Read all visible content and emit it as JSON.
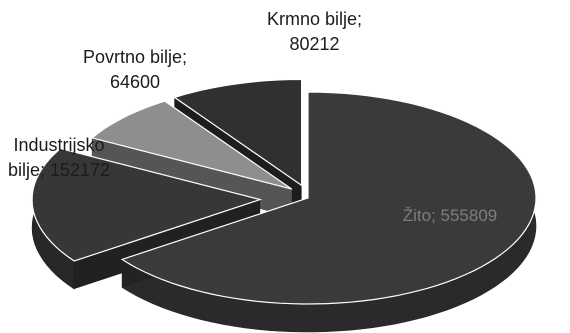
{
  "chart_data": {
    "type": "pie",
    "title": "",
    "slices": [
      {
        "name": "Žito",
        "value": 555809,
        "color": "#3a3a3a"
      },
      {
        "name": "Industrijsko bilje",
        "value": 152172,
        "color": "#373737"
      },
      {
        "name": "Povrtno bilje",
        "value": 64600,
        "color": "#8e8e8e"
      },
      {
        "name": "Krmno bilje",
        "value": 80212,
        "color": "#303030"
      }
    ],
    "data_labels": [
      [
        "Žito; 555809"
      ],
      [
        "Industrijsko",
        "bilje; 152172"
      ],
      [
        "Povrtno bilje;",
        "64600"
      ],
      [
        "Krmno bilje;",
        "80212"
      ]
    ],
    "style": "3d-exploded",
    "legend": "none"
  }
}
